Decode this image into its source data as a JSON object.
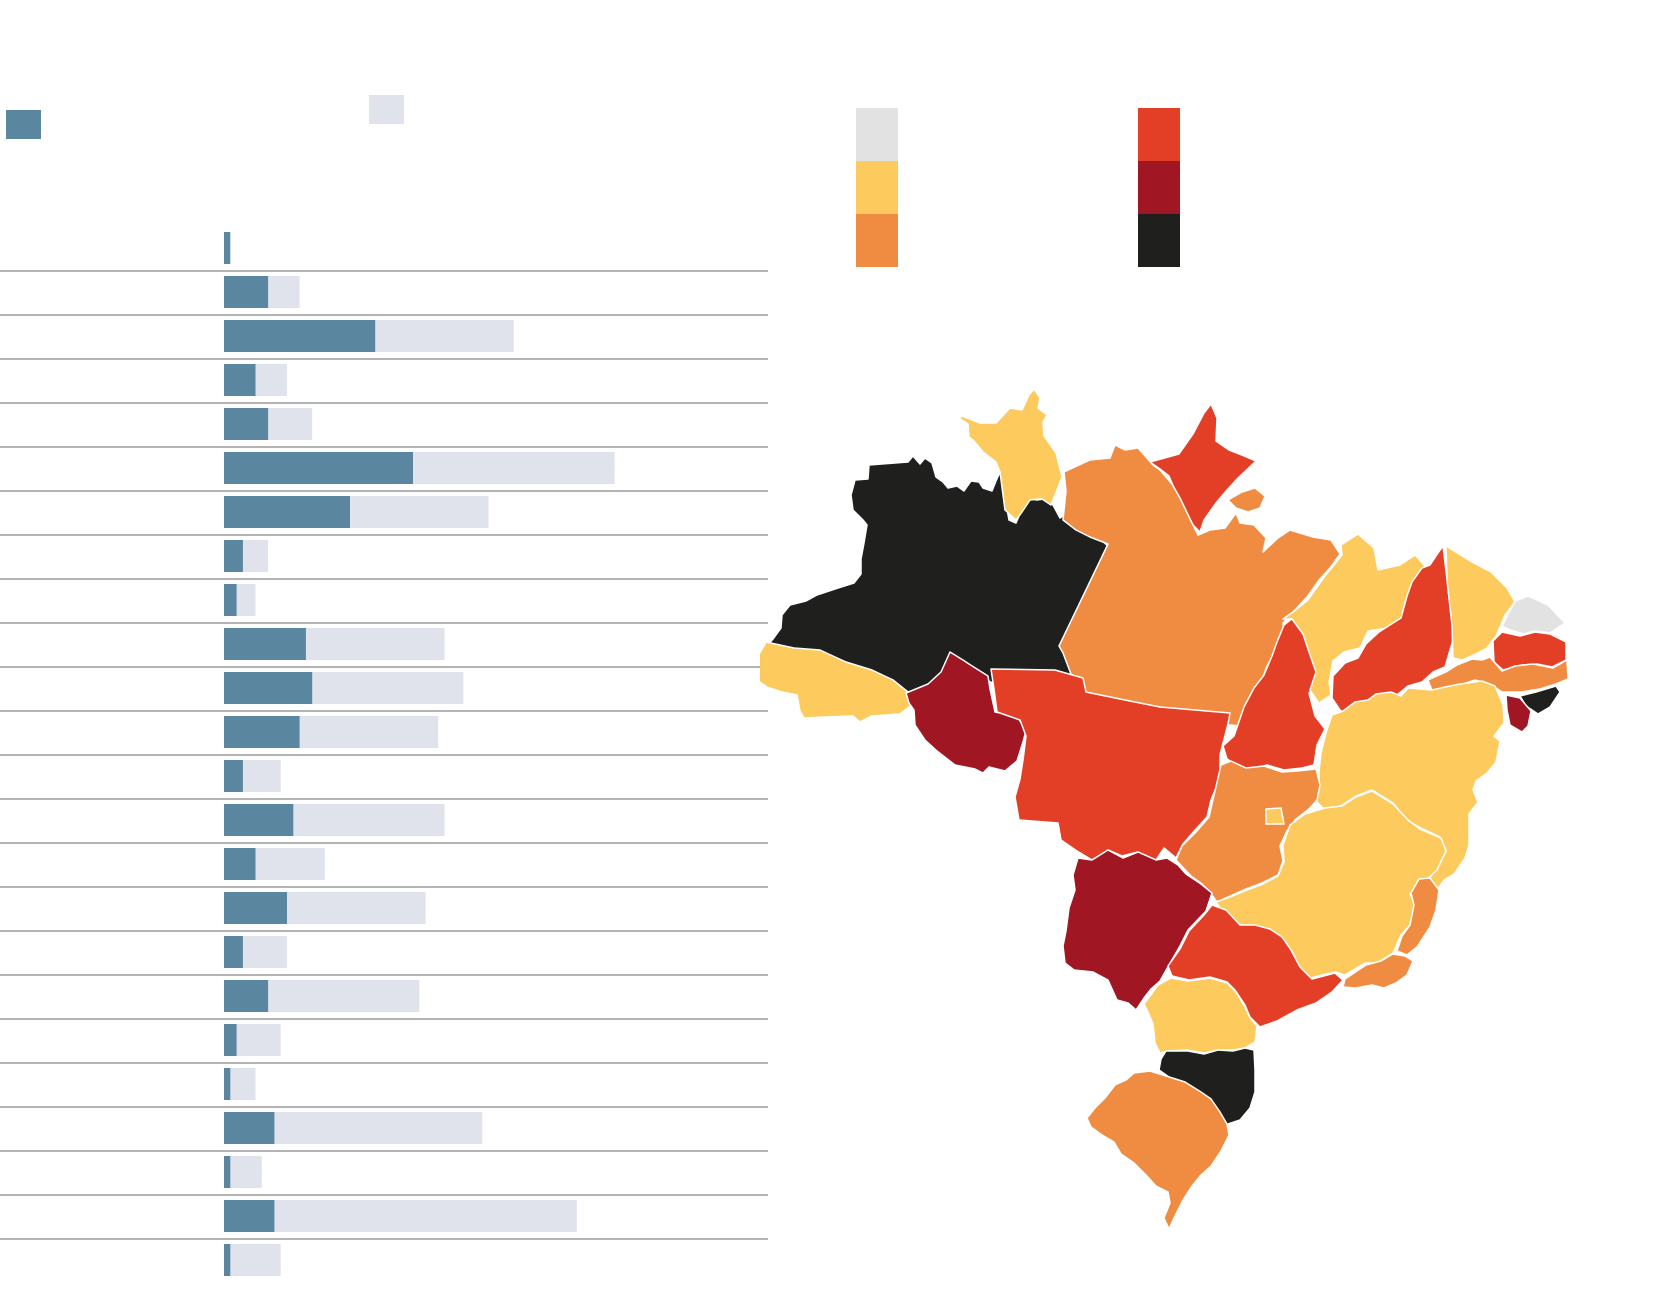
{
  "legend_bars": [
    {
      "key": "a",
      "color": "#5b86a0"
    },
    {
      "key": "b",
      "color": "#e1e3ec"
    }
  ],
  "map_legend": [
    {
      "key": "c1",
      "color": "#e2e2e2"
    },
    {
      "key": "c2",
      "color": "#fcca5d"
    },
    {
      "key": "c3",
      "color": "#ef8c41"
    },
    {
      "key": "c4",
      "color": "#e33f26"
    },
    {
      "key": "c5",
      "color": "#a01622"
    },
    {
      "key": "c6",
      "color": "#1f201e"
    }
  ],
  "chart_data": [
    {
      "type": "bar",
      "orientation": "horizontal",
      "grid": true,
      "xlim": [
        0,
        104
      ],
      "series": [
        {
          "key": "a",
          "color": "#5b86a0",
          "values": [
            1,
            7,
            24,
            5,
            7,
            30,
            20,
            3,
            2,
            13,
            14,
            12,
            3,
            11,
            5,
            10,
            3,
            7,
            2,
            1,
            8,
            1,
            8,
            1
          ]
        },
        {
          "key": "b",
          "color": "#e1e3ec",
          "values": [
            0,
            12,
            46,
            10,
            14,
            62,
            42,
            7,
            5,
            35,
            38,
            34,
            9,
            35,
            16,
            32,
            10,
            31,
            9,
            5,
            41,
            6,
            56,
            9
          ]
        }
      ]
    },
    {
      "type": "choropleth",
      "regions": [
        {
          "id": "AM",
          "class": 6
        },
        {
          "id": "RR",
          "class": 2
        },
        {
          "id": "AP",
          "class": 4
        },
        {
          "id": "PA",
          "class": 3
        },
        {
          "id": "AC",
          "class": 2
        },
        {
          "id": "RO",
          "class": 5
        },
        {
          "id": "MT",
          "class": 4
        },
        {
          "id": "TO",
          "class": 4
        },
        {
          "id": "MA",
          "class": 2
        },
        {
          "id": "PI",
          "class": 4
        },
        {
          "id": "CE",
          "class": 2
        },
        {
          "id": "RN",
          "class": 1
        },
        {
          "id": "PB",
          "class": 4
        },
        {
          "id": "PE",
          "class": 3
        },
        {
          "id": "AL",
          "class": 6
        },
        {
          "id": "SE",
          "class": 5
        },
        {
          "id": "BA",
          "class": 2
        },
        {
          "id": "GO",
          "class": 3
        },
        {
          "id": "DF",
          "class": 2
        },
        {
          "id": "MG",
          "class": 2
        },
        {
          "id": "ES",
          "class": 3
        },
        {
          "id": "RJ",
          "class": 3
        },
        {
          "id": "MS",
          "class": 5
        },
        {
          "id": "SP",
          "class": 4
        },
        {
          "id": "PR",
          "class": 2
        },
        {
          "id": "SC",
          "class": 6
        },
        {
          "id": "RS",
          "class": 3
        }
      ]
    }
  ]
}
